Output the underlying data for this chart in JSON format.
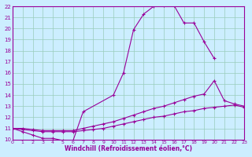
{
  "title": "",
  "xlabel": "Windchill (Refroidissement éolien,°C)",
  "bg_color": "#cceeff",
  "line_color": "#990099",
  "grid_color": "#99ccbb",
  "xmin": 0,
  "xmax": 23,
  "ymin": 10,
  "ymax": 22,
  "series": [
    {
      "x": [
        0,
        1,
        2,
        3,
        4,
        5,
        6,
        7,
        10,
        11,
        12,
        13,
        14,
        15,
        16,
        17,
        18,
        19,
        20
      ],
      "y": [
        11.0,
        10.7,
        10.4,
        10.1,
        10.1,
        9.9,
        9.9,
        12.5,
        14.0,
        16.0,
        19.9,
        21.3,
        22.0,
        22.1,
        22.1,
        20.5,
        20.5,
        18.8,
        17.3
      ]
    },
    {
      "x": [
        0,
        1,
        2,
        3,
        4,
        5,
        6,
        7,
        8,
        9,
        10,
        11,
        12,
        13,
        14,
        15,
        16,
        17,
        18,
        19,
        20,
        21,
        22,
        23
      ],
      "y": [
        11.0,
        10.9,
        10.8,
        10.7,
        10.7,
        10.7,
        10.7,
        10.8,
        10.9,
        11.0,
        11.2,
        11.4,
        11.6,
        11.8,
        12.0,
        12.1,
        12.3,
        12.5,
        12.6,
        12.8,
        12.9,
        13.0,
        13.1,
        12.9
      ]
    },
    {
      "x": [
        0,
        1,
        2,
        3,
        4,
        5,
        6,
        7,
        8,
        9,
        10,
        11,
        12,
        13,
        14,
        15,
        16,
        17,
        18,
        19,
        20,
        21,
        22,
        23
      ],
      "y": [
        11.0,
        11.0,
        10.9,
        10.8,
        10.8,
        10.8,
        10.8,
        11.0,
        11.2,
        11.4,
        11.6,
        11.9,
        12.2,
        12.5,
        12.8,
        13.0,
        13.3,
        13.6,
        13.9,
        14.1,
        15.3,
        13.5,
        13.2,
        13.0
      ]
    }
  ]
}
